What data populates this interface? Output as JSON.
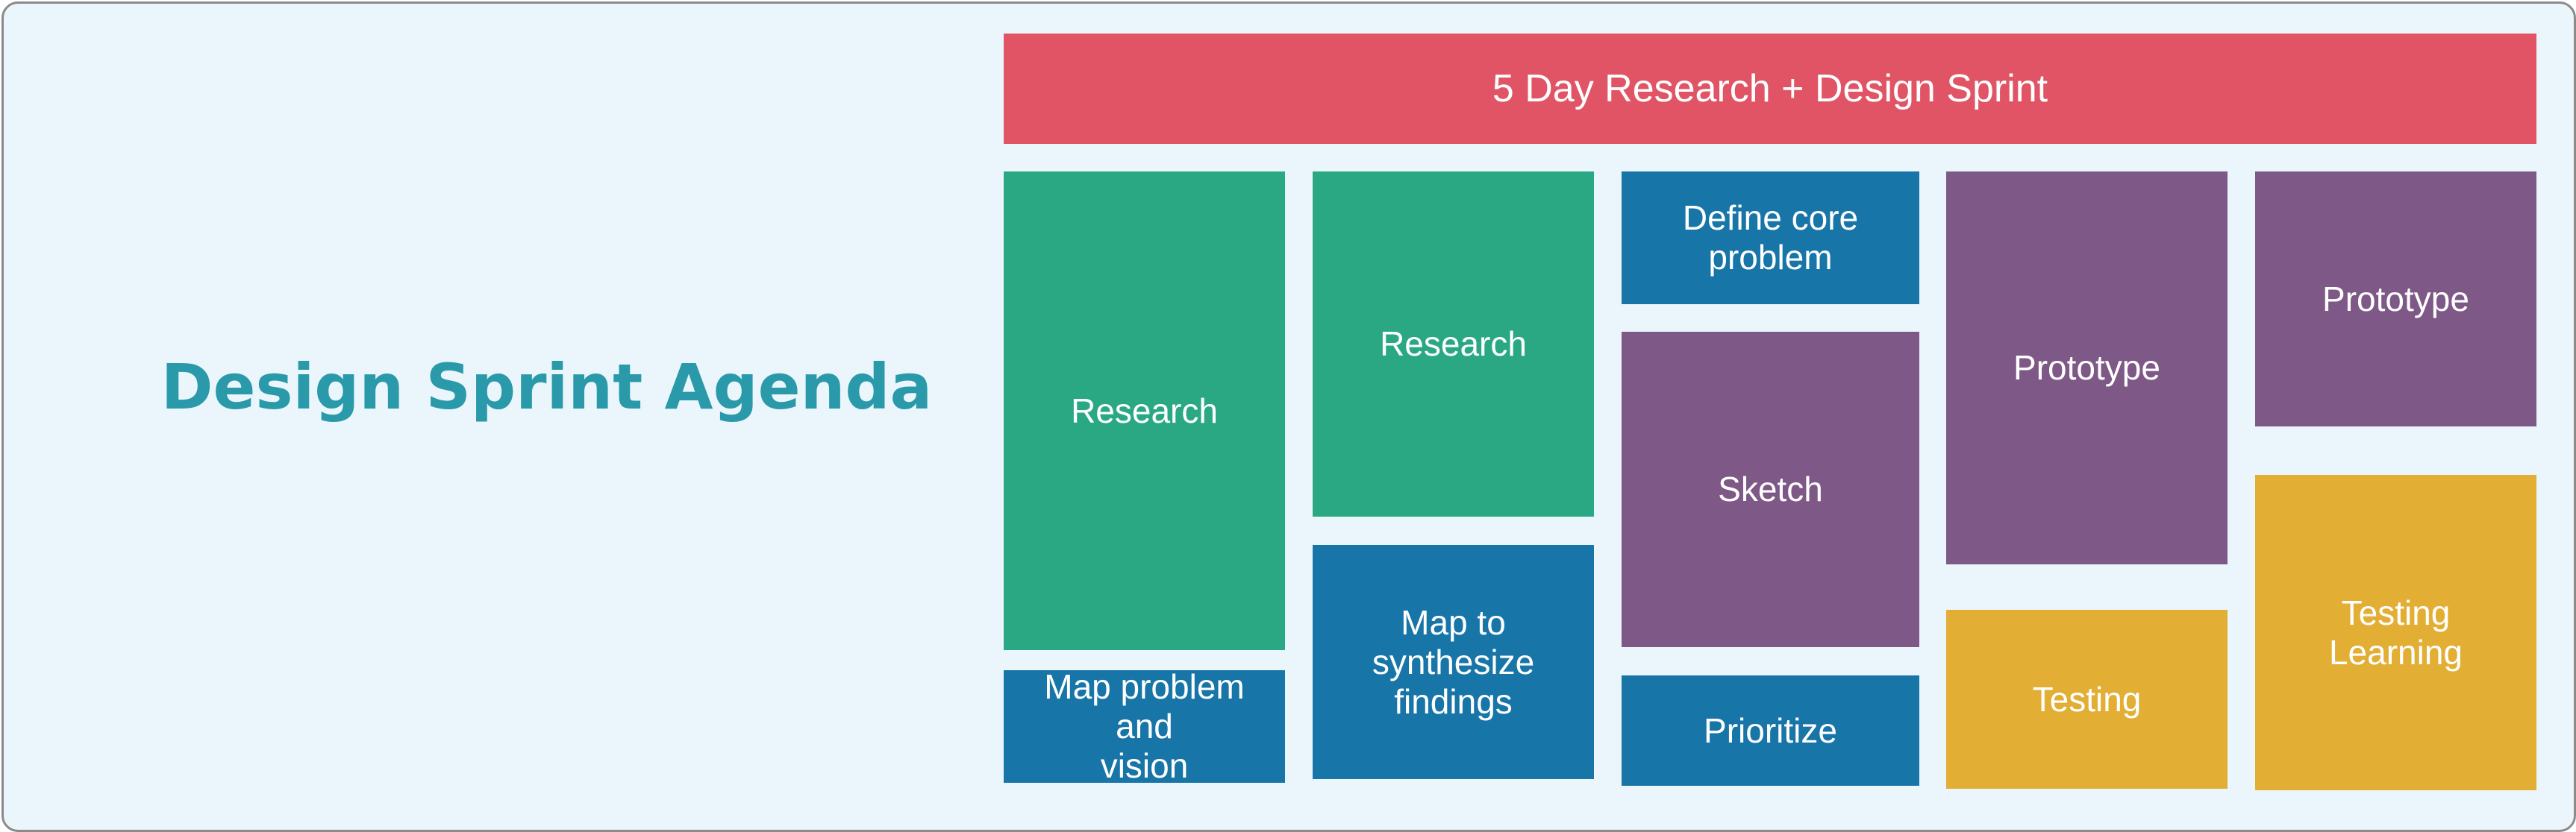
{
  "title": "Design Sprint Agenda",
  "header": "5 Day Research + Design Sprint",
  "colors": {
    "header": "#e05466",
    "research": "#29a883",
    "define": "#1775a8",
    "ideate": "#7e5886",
    "testing": "#e2ae33",
    "title": "#2a9aab"
  },
  "blocks": {
    "day1_research": "Research",
    "day1_map": "Map problem and\nvision",
    "day2_research": "Research",
    "day2_map": "Map to\nsynthesize\nfindings",
    "day3_define": "Define core\nproblem",
    "day3_sketch": "Sketch",
    "day3_prioritize": "Prioritize",
    "day4_prototype": "Prototype",
    "day4_testing": "Testing",
    "day5_prototype": "Prototype",
    "day5_testing": "Testing\nLearning"
  }
}
